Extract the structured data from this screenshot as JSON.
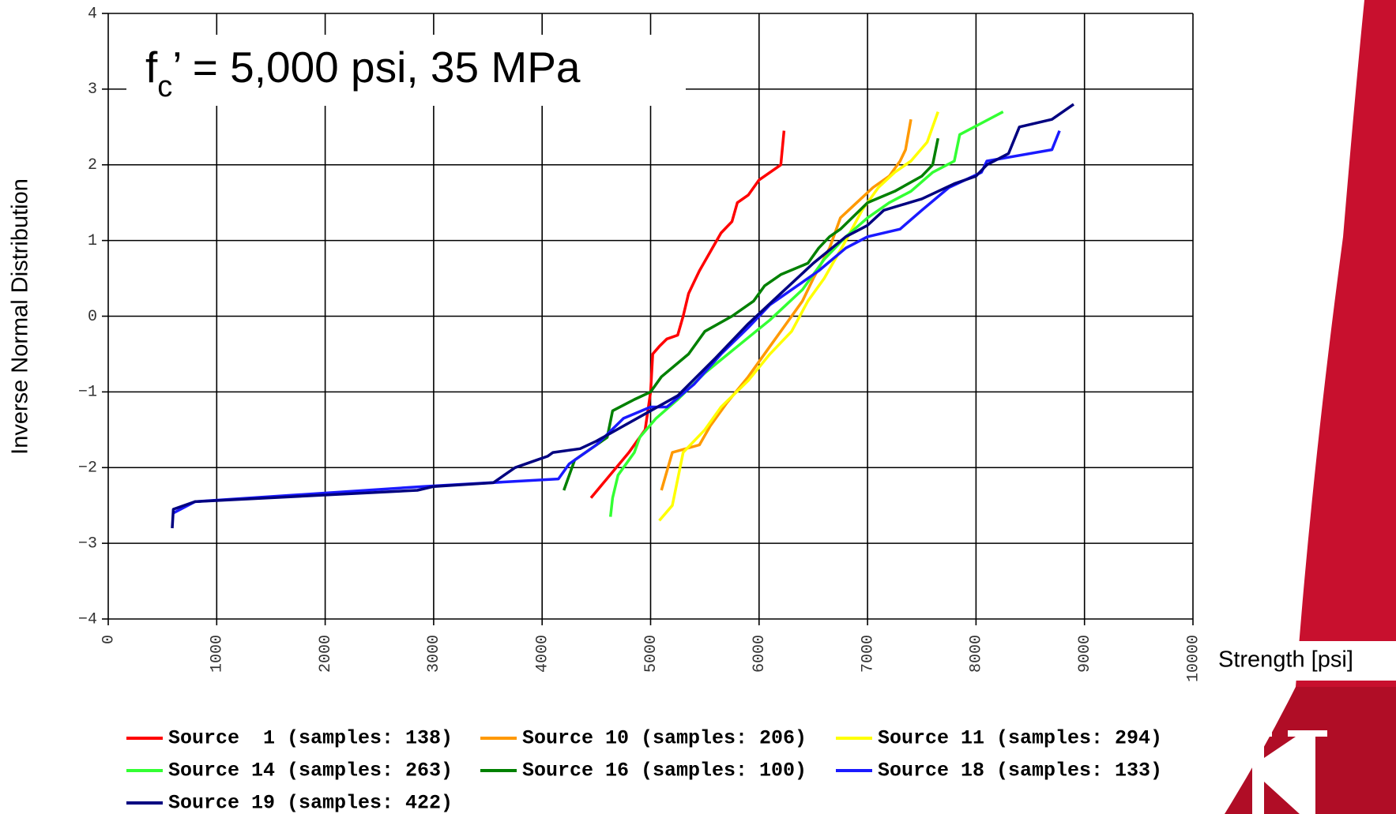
{
  "chart_data": {
    "type": "line",
    "title": {
      "main": "f",
      "sub": "c",
      "rest": "’ =  5,000 psi, 35 MPa"
    },
    "y_label": "Inverse Normal Distribution",
    "x_label": "Strength [psi]",
    "xlim": [
      0,
      10000
    ],
    "xticks": [
      0,
      1000,
      2000,
      3000,
      4000,
      5000,
      6000,
      7000,
      8000,
      9000,
      10000
    ],
    "ylim": [
      -4,
      4
    ],
    "yticks": [
      {
        "value": -4,
        "label": "−4"
      },
      {
        "value": -3,
        "label": "−3"
      },
      {
        "value": -2,
        "label": "−2"
      },
      {
        "value": -1,
        "label": "−1"
      },
      0,
      1,
      2,
      3,
      4
    ],
    "grid": true,
    "series": [
      {
        "name": "Source  1 (samples: 138)",
        "color": "#ff0000",
        "x": [
          4450,
          4800,
          4950,
          5000,
          5020,
          5080,
          5150,
          5250,
          5300,
          5350,
          5400,
          5450,
          5550,
          5650,
          5750,
          5800,
          5900,
          6000,
          6200,
          6230
        ],
        "values": [
          -2.4,
          -1.8,
          -1.5,
          -1.0,
          -0.5,
          -0.4,
          -0.3,
          -0.25,
          0.0,
          0.3,
          0.45,
          0.6,
          0.85,
          1.1,
          1.25,
          1.5,
          1.6,
          1.8,
          2.0,
          2.45
        ]
      },
      {
        "name": "Source 10 (samples: 206)",
        "color": "#ff9900",
        "x": [
          5100,
          5200,
          5450,
          5550,
          5700,
          5900,
          6100,
          6250,
          6400,
          6500,
          6650,
          6750,
          6900,
          7050,
          7200,
          7300,
          7350,
          7400
        ],
        "values": [
          -2.3,
          -1.8,
          -1.7,
          -1.45,
          -1.15,
          -0.8,
          -0.4,
          -0.1,
          0.2,
          0.5,
          0.9,
          1.3,
          1.5,
          1.7,
          1.85,
          2.05,
          2.2,
          2.6
        ]
      },
      {
        "name": "Source 11 (samples: 294)",
        "color": "#ffff00",
        "x": [
          5080,
          5200,
          5300,
          5500,
          5650,
          5900,
          6100,
          6300,
          6450,
          6600,
          6800,
          6950,
          7100,
          7250,
          7400,
          7550,
          7650
        ],
        "values": [
          -2.7,
          -2.5,
          -1.8,
          -1.5,
          -1.2,
          -0.85,
          -0.5,
          -0.2,
          0.2,
          0.5,
          1.0,
          1.4,
          1.7,
          1.9,
          2.05,
          2.3,
          2.7
        ]
      },
      {
        "name": "Source 14 (samples: 263)",
        "color": "#33ff33",
        "x": [
          4630,
          4650,
          4700,
          4800,
          4850,
          4900,
          5050,
          5250,
          5500,
          5800,
          6100,
          6400,
          6600,
          6800,
          7000,
          7200,
          7400,
          7600,
          7800,
          7850,
          8050,
          8250
        ],
        "values": [
          -2.65,
          -2.4,
          -2.1,
          -1.9,
          -1.8,
          -1.6,
          -1.35,
          -1.1,
          -0.75,
          -0.4,
          -0.05,
          0.35,
          0.75,
          1.05,
          1.3,
          1.5,
          1.65,
          1.9,
          2.05,
          2.4,
          2.55,
          2.7
        ]
      },
      {
        "name": "Source 16 (samples: 100)",
        "color": "#008000",
        "x": [
          4200,
          4300,
          4600,
          4650,
          4850,
          5000,
          5100,
          5350,
          5500,
          5750,
          5950,
          6050,
          6200,
          6450,
          6550,
          6650,
          6750,
          7000,
          7250,
          7500,
          7600,
          7650
        ],
        "values": [
          -2.3,
          -1.9,
          -1.6,
          -1.25,
          -1.1,
          -1.0,
          -0.8,
          -0.5,
          -0.2,
          0.0,
          0.2,
          0.4,
          0.55,
          0.7,
          0.9,
          1.05,
          1.15,
          1.5,
          1.65,
          1.85,
          2.0,
          2.35
        ]
      },
      {
        "name": "Source 18 (samples: 133)",
        "color": "#1a1aff",
        "x": [
          600,
          800,
          2900,
          4150,
          4250,
          4500,
          4750,
          5000,
          5150,
          5400,
          5650,
          5900,
          6100,
          6300,
          6550,
          6800,
          7000,
          7300,
          7500,
          7750,
          7900,
          8050,
          8100,
          8700,
          8770
        ],
        "values": [
          -2.6,
          -2.45,
          -2.25,
          -2.15,
          -1.95,
          -1.7,
          -1.35,
          -1.2,
          -1.2,
          -0.9,
          -0.5,
          -0.15,
          0.15,
          0.35,
          0.6,
          0.9,
          1.05,
          1.15,
          1.4,
          1.7,
          1.8,
          1.9,
          2.05,
          2.2,
          2.45
        ]
      },
      {
        "name": "Source 19 (samples: 422)",
        "color": "#000080",
        "x": [
          590,
          600,
          800,
          2850,
          3000,
          3550,
          3750,
          3950,
          4050,
          4100,
          4350,
          4500,
          4750,
          5000,
          5250,
          5600,
          5900,
          6200,
          6500,
          6800,
          7000,
          7150,
          7500,
          7800,
          8000,
          8100,
          8300,
          8400,
          8700,
          8900
        ],
        "values": [
          -2.8,
          -2.55,
          -2.45,
          -2.3,
          -2.25,
          -2.2,
          -2.0,
          -1.9,
          -1.85,
          -1.8,
          -1.75,
          -1.65,
          -1.45,
          -1.25,
          -1.05,
          -0.55,
          -0.1,
          0.3,
          0.7,
          1.05,
          1.2,
          1.4,
          1.55,
          1.75,
          1.85,
          2.0,
          2.15,
          2.5,
          2.6,
          2.8
        ]
      }
    ]
  }
}
